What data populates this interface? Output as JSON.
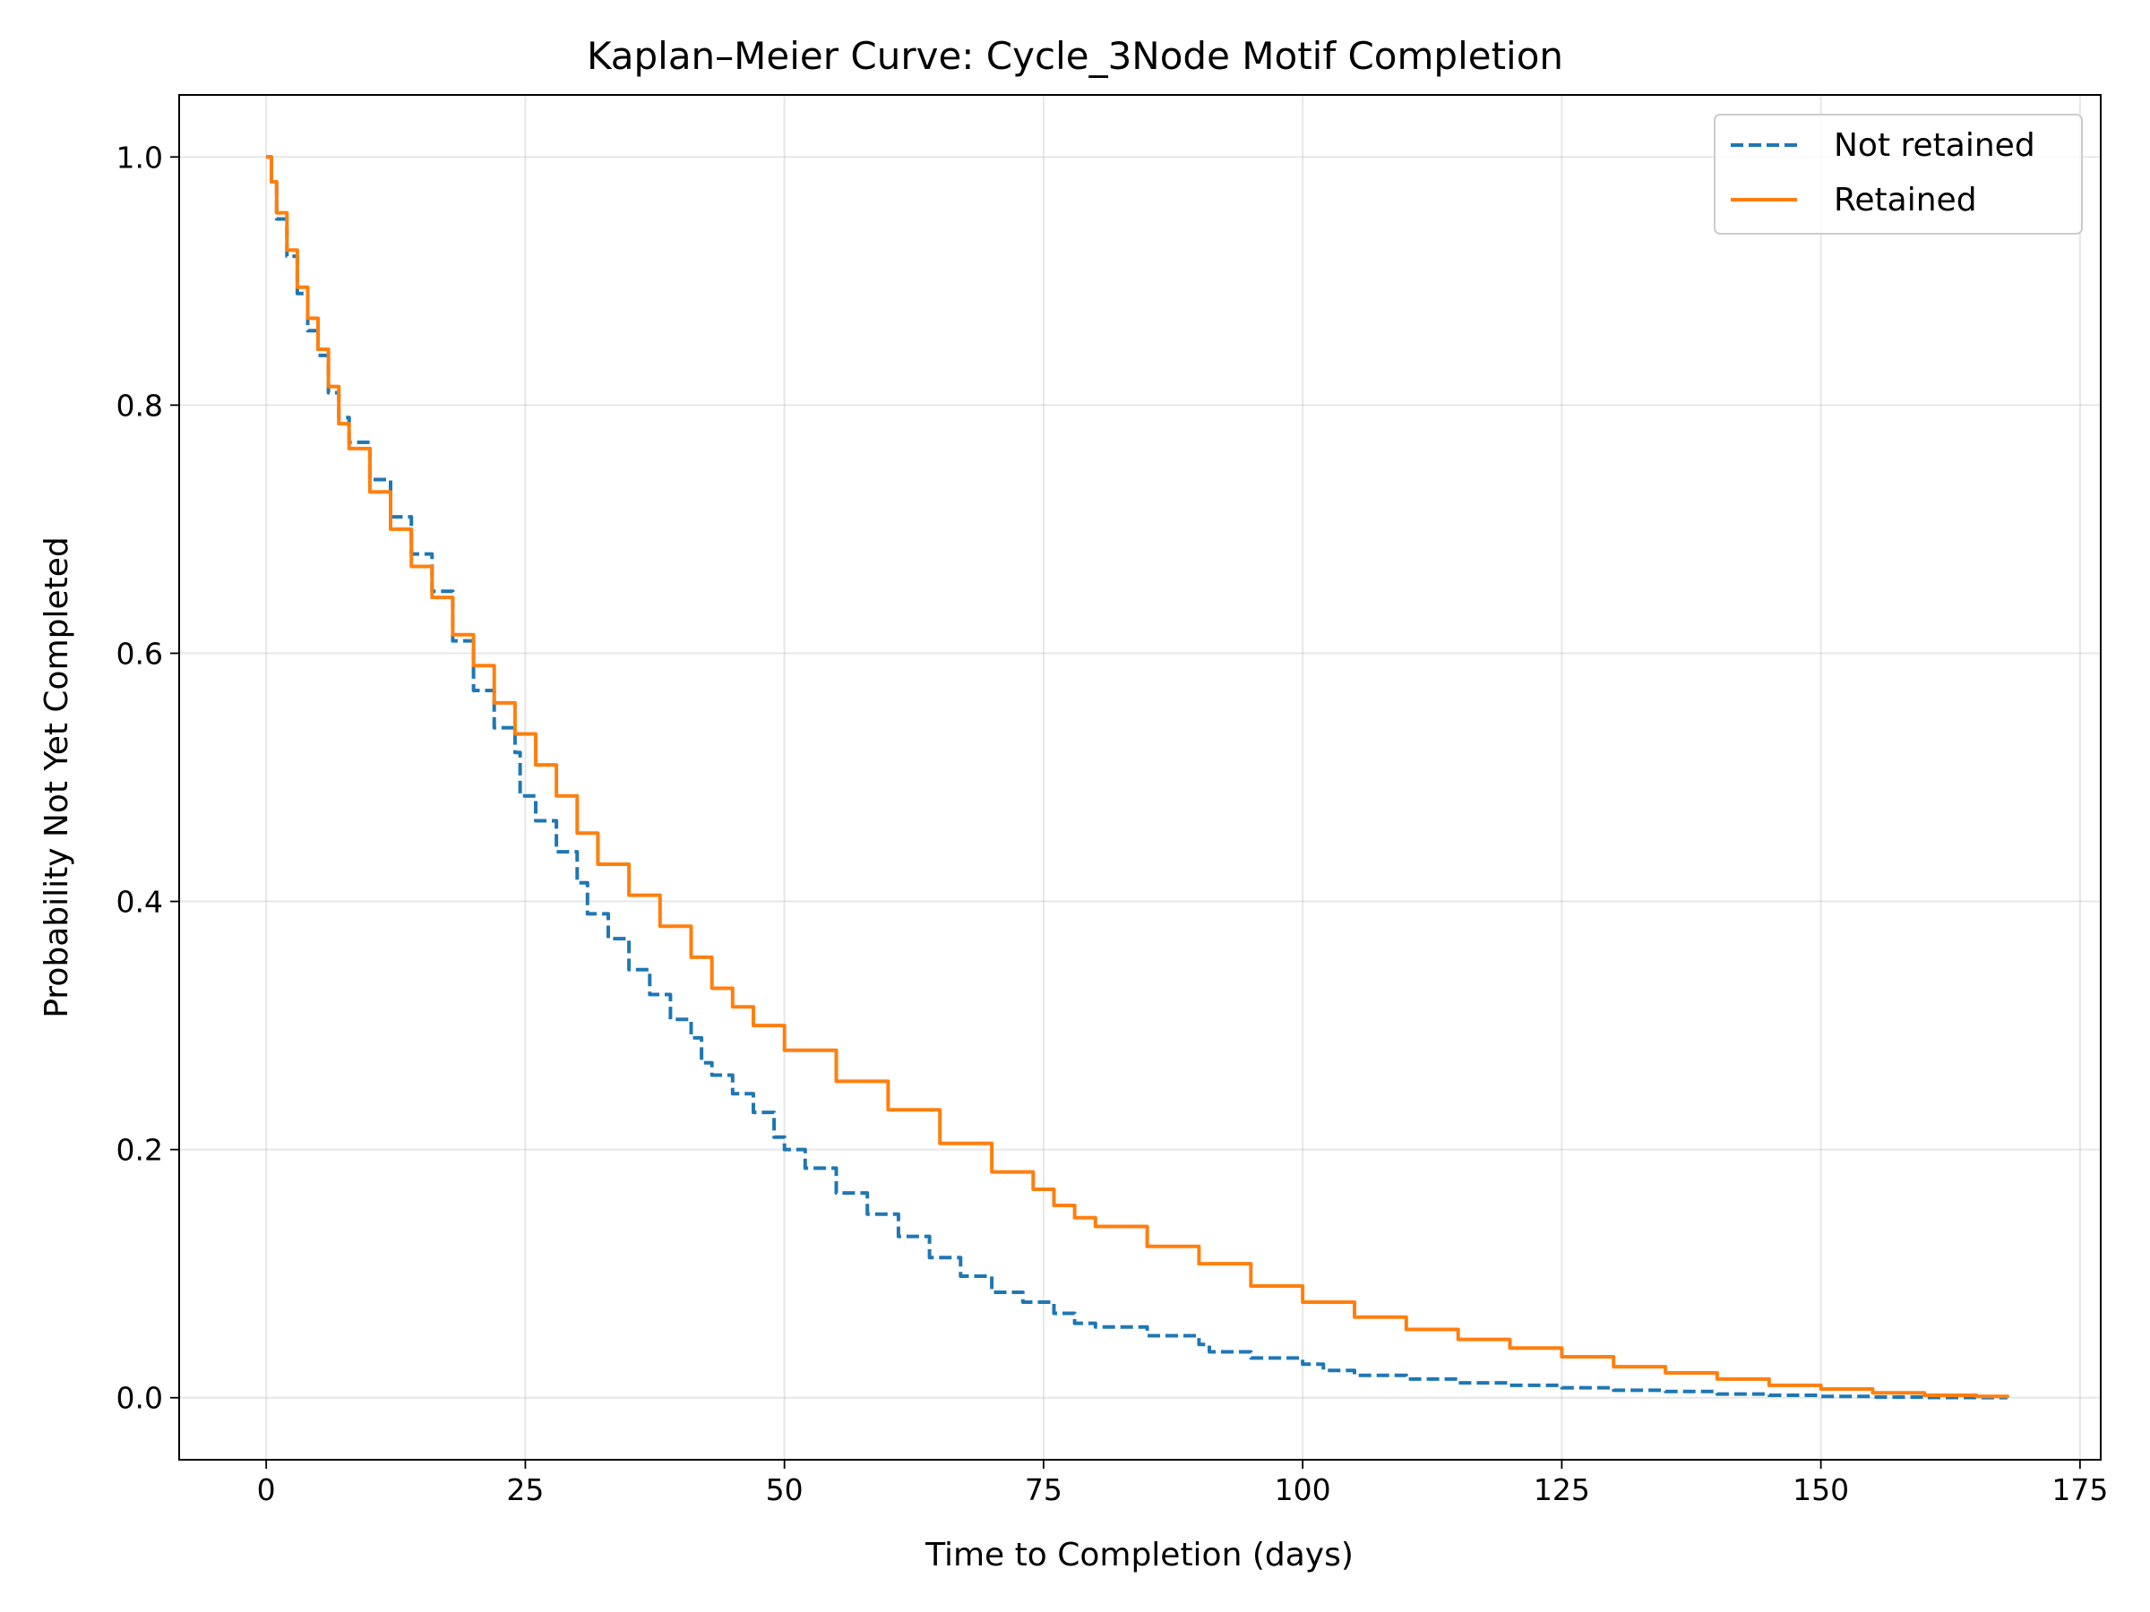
{
  "chart_data": {
    "type": "line",
    "title": "Kaplan–Meier Curve: Cycle_3Node Motif Completion",
    "xlabel": "Time to Completion (days)",
    "ylabel": "Probability Not Yet Completed",
    "xlim": [
      -8.4,
      177
    ],
    "ylim": [
      -0.05,
      1.05
    ],
    "xticks": [
      0,
      25,
      50,
      75,
      100,
      125,
      150,
      175
    ],
    "yticks": [
      0.0,
      0.2,
      0.4,
      0.6,
      0.8,
      1.0
    ],
    "xtick_labels": [
      "0",
      "25",
      "50",
      "75",
      "100",
      "125",
      "150",
      "175"
    ],
    "ytick_labels": [
      "0.0",
      "0.2",
      "0.4",
      "0.6",
      "0.8",
      "1.0"
    ],
    "grid": true,
    "legend_position": "top-right",
    "series": [
      {
        "name": "Not retained",
        "color": "#1f77b4",
        "style": "dashed",
        "x": [
          0,
          0.5,
          1,
          2,
          3,
          4,
          5,
          6,
          7,
          8,
          10,
          12,
          14,
          16,
          18,
          20,
          22,
          24,
          24.5,
          26,
          28,
          30,
          31,
          33,
          35,
          37,
          39,
          41,
          42,
          43,
          45,
          47,
          49,
          50,
          52,
          55,
          58,
          61,
          64,
          67,
          70,
          73,
          76,
          78,
          80,
          85,
          90,
          91,
          95,
          100,
          102,
          105,
          110,
          115,
          120,
          125,
          130,
          135,
          140,
          145,
          150,
          155,
          160,
          165,
          168
        ],
        "y": [
          1.0,
          0.98,
          0.95,
          0.92,
          0.89,
          0.86,
          0.84,
          0.81,
          0.79,
          0.77,
          0.74,
          0.71,
          0.68,
          0.65,
          0.61,
          0.57,
          0.54,
          0.52,
          0.485,
          0.465,
          0.44,
          0.415,
          0.39,
          0.37,
          0.345,
          0.325,
          0.305,
          0.29,
          0.27,
          0.26,
          0.245,
          0.23,
          0.21,
          0.2,
          0.185,
          0.165,
          0.148,
          0.13,
          0.113,
          0.098,
          0.085,
          0.077,
          0.068,
          0.06,
          0.057,
          0.05,
          0.043,
          0.037,
          0.032,
          0.027,
          0.022,
          0.018,
          0.015,
          0.012,
          0.01,
          0.008,
          0.006,
          0.005,
          0.003,
          0.002,
          0.001,
          0.0005,
          0.0002,
          0.0001,
          0.0
        ]
      },
      {
        "name": "Retained",
        "color": "#ff7f0e",
        "style": "solid",
        "x": [
          0,
          0.5,
          1,
          2,
          3,
          4,
          5,
          6,
          7,
          8,
          10,
          12,
          14,
          16,
          18,
          20,
          22,
          24,
          26,
          28,
          30,
          32,
          35,
          38,
          41,
          43,
          45,
          47,
          50,
          55,
          60,
          65,
          70,
          74,
          76,
          78,
          80,
          85,
          90,
          95,
          100,
          105,
          110,
          115,
          120,
          125,
          130,
          135,
          140,
          145,
          150,
          155,
          160,
          165,
          168
        ],
        "y": [
          1.0,
          0.98,
          0.955,
          0.925,
          0.895,
          0.87,
          0.845,
          0.815,
          0.785,
          0.765,
          0.73,
          0.7,
          0.67,
          0.645,
          0.615,
          0.59,
          0.56,
          0.535,
          0.51,
          0.485,
          0.455,
          0.43,
          0.405,
          0.38,
          0.355,
          0.33,
          0.315,
          0.3,
          0.28,
          0.255,
          0.232,
          0.205,
          0.182,
          0.168,
          0.155,
          0.145,
          0.138,
          0.122,
          0.108,
          0.09,
          0.077,
          0.065,
          0.055,
          0.047,
          0.04,
          0.033,
          0.025,
          0.02,
          0.015,
          0.01,
          0.007,
          0.004,
          0.002,
          0.001,
          0.0
        ]
      }
    ]
  }
}
